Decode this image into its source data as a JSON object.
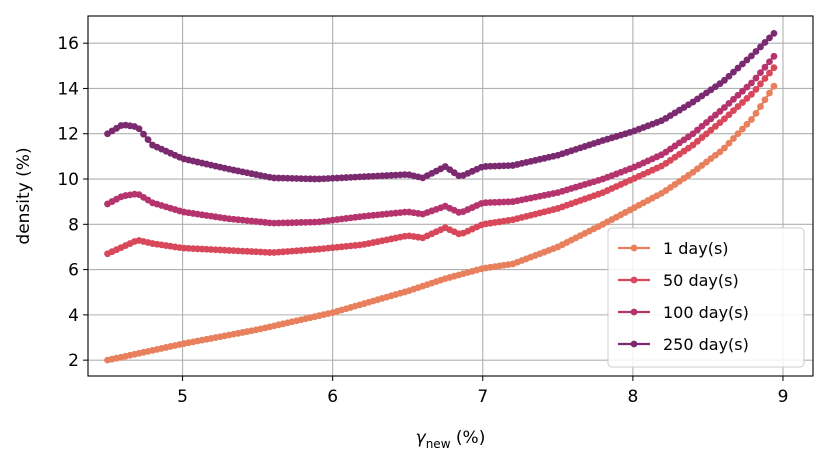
{
  "chart_data": {
    "type": "line",
    "xlabel": {
      "base": "γ",
      "sub": "new",
      "suffix": " (%)"
    },
    "ylabel": "density (%)",
    "xlim": [
      4.37,
      9.2
    ],
    "ylim": [
      1.3,
      17.2
    ],
    "xticks": [
      5,
      6,
      7,
      8,
      9
    ],
    "yticks": [
      2,
      4,
      6,
      8,
      10,
      12,
      14,
      16
    ],
    "grid": true,
    "legend_position": "lower right",
    "series": [
      {
        "name": "1 day(s)",
        "color": "#e8805e",
        "anchors": [
          [
            4.5,
            2.0
          ],
          [
            5.0,
            2.72
          ],
          [
            5.5,
            3.35
          ],
          [
            6.0,
            4.1
          ],
          [
            6.5,
            5.05
          ],
          [
            6.75,
            5.6
          ],
          [
            7.0,
            6.05
          ],
          [
            7.2,
            6.25
          ],
          [
            7.5,
            7.0
          ],
          [
            7.8,
            8.0
          ],
          [
            8.0,
            8.7
          ],
          [
            8.2,
            9.4
          ],
          [
            8.4,
            10.3
          ],
          [
            8.6,
            11.3
          ],
          [
            8.8,
            12.7
          ],
          [
            8.95,
            14.2
          ]
        ]
      },
      {
        "name": "50 day(s)",
        "color": "#d8475a",
        "anchors": [
          [
            4.5,
            6.7
          ],
          [
            4.6,
            7.0
          ],
          [
            4.7,
            7.3
          ],
          [
            4.8,
            7.15
          ],
          [
            5.0,
            6.95
          ],
          [
            5.3,
            6.85
          ],
          [
            5.6,
            6.75
          ],
          [
            5.9,
            6.9
          ],
          [
            6.2,
            7.1
          ],
          [
            6.5,
            7.5
          ],
          [
            6.6,
            7.4
          ],
          [
            6.75,
            7.85
          ],
          [
            6.85,
            7.55
          ],
          [
            7.0,
            8.0
          ],
          [
            7.2,
            8.2
          ],
          [
            7.5,
            8.7
          ],
          [
            7.8,
            9.4
          ],
          [
            8.0,
            10.0
          ],
          [
            8.2,
            10.6
          ],
          [
            8.4,
            11.5
          ],
          [
            8.6,
            12.6
          ],
          [
            8.8,
            13.8
          ],
          [
            8.95,
            15.0
          ]
        ]
      },
      {
        "name": "100 day(s)",
        "color": "#b6346d",
        "anchors": [
          [
            4.5,
            8.9
          ],
          [
            4.6,
            9.25
          ],
          [
            4.7,
            9.35
          ],
          [
            4.8,
            8.95
          ],
          [
            5.0,
            8.55
          ],
          [
            5.3,
            8.25
          ],
          [
            5.6,
            8.05
          ],
          [
            5.9,
            8.1
          ],
          [
            6.2,
            8.35
          ],
          [
            6.5,
            8.55
          ],
          [
            6.6,
            8.45
          ],
          [
            6.75,
            8.8
          ],
          [
            6.85,
            8.5
          ],
          [
            7.0,
            8.95
          ],
          [
            7.2,
            9.0
          ],
          [
            7.5,
            9.4
          ],
          [
            7.8,
            10.0
          ],
          [
            8.0,
            10.5
          ],
          [
            8.2,
            11.1
          ],
          [
            8.4,
            12.0
          ],
          [
            8.6,
            13.1
          ],
          [
            8.8,
            14.3
          ],
          [
            8.95,
            15.5
          ]
        ]
      },
      {
        "name": "250 day(s)",
        "color": "#7b2a70",
        "anchors": [
          [
            4.5,
            12.0
          ],
          [
            4.6,
            12.4
          ],
          [
            4.7,
            12.3
          ],
          [
            4.8,
            11.5
          ],
          [
            5.0,
            10.9
          ],
          [
            5.3,
            10.45
          ],
          [
            5.6,
            10.05
          ],
          [
            5.9,
            10.0
          ],
          [
            6.2,
            10.1
          ],
          [
            6.5,
            10.2
          ],
          [
            6.6,
            10.05
          ],
          [
            6.75,
            10.55
          ],
          [
            6.85,
            10.1
          ],
          [
            7.0,
            10.55
          ],
          [
            7.2,
            10.6
          ],
          [
            7.5,
            11.05
          ],
          [
            7.8,
            11.7
          ],
          [
            8.0,
            12.1
          ],
          [
            8.2,
            12.6
          ],
          [
            8.4,
            13.4
          ],
          [
            8.6,
            14.3
          ],
          [
            8.8,
            15.5
          ],
          [
            8.95,
            16.5
          ]
        ]
      }
    ]
  }
}
